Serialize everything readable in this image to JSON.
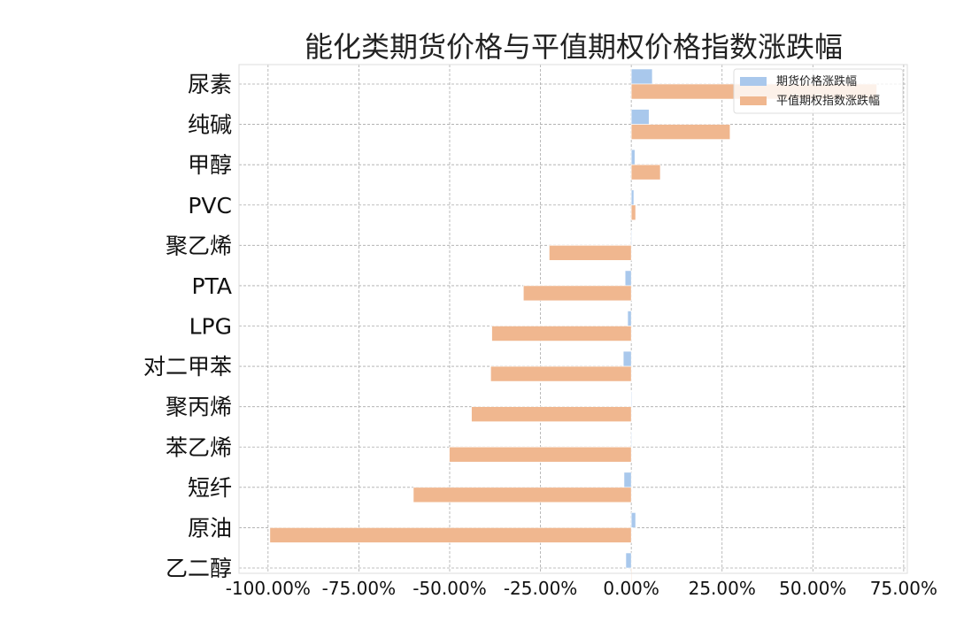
{
  "chart_data": {
    "type": "bar",
    "orientation": "horizontal",
    "title": "能化类期货价格与平值期权价格指数涨跌幅",
    "categories": [
      "尿素",
      "纯碱",
      "甲醇",
      "PVC",
      "聚乙烯",
      "PTA",
      "LPG",
      "对二甲苯",
      "聚丙烯",
      "苯乙烯",
      "短纤",
      "原油",
      "乙二醇"
    ],
    "series": [
      {
        "name": "期货价格涨跌幅",
        "color": "#a9c8ec",
        "values": [
          5.8,
          4.9,
          1.0,
          0.7,
          0.0,
          -1.7,
          -1.0,
          -2.2,
          -0.1,
          0.0,
          -2.0,
          1.2,
          -1.5
        ]
      },
      {
        "name": "平值期权指数涨跌幅",
        "color": "#f0b78f",
        "values": [
          67.6,
          27.2,
          8.0,
          1.2,
          -22.6,
          -29.7,
          -38.4,
          -38.7,
          -44.0,
          -50.1,
          -60.0,
          -99.5,
          0.0
        ]
      }
    ],
    "unit": "%",
    "xlim": [
      -108,
      76
    ],
    "xticks": [
      -100,
      -75,
      -50,
      -25,
      0,
      25,
      50,
      75
    ],
    "xtick_labels": [
      "-100.00%",
      "-75.00%",
      "-50.00%",
      "-25.00%",
      "0.00%",
      "25.00%",
      "50.00%",
      "75.00%"
    ],
    "grid": true,
    "legend": "top-right"
  }
}
